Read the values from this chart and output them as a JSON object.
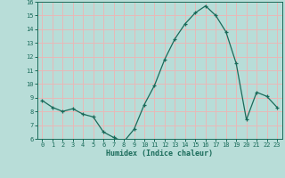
{
  "x": [
    0,
    1,
    2,
    3,
    4,
    5,
    6,
    7,
    8,
    9,
    10,
    11,
    12,
    13,
    14,
    15,
    16,
    17,
    18,
    19,
    20,
    21,
    22,
    23
  ],
  "y": [
    8.8,
    8.3,
    8.0,
    8.2,
    7.8,
    7.6,
    6.5,
    6.1,
    5.8,
    6.7,
    8.5,
    9.9,
    11.8,
    13.3,
    14.4,
    15.2,
    15.7,
    15.0,
    13.8,
    11.5,
    7.4,
    9.4,
    9.1,
    8.3
  ],
  "line_color": "#1a6b5a",
  "marker": "+",
  "marker_size": 3,
  "bg_color": "#b8ddd8",
  "grid_color": "#e8b8b8",
  "axis_label_color": "#1a6b5a",
  "tick_color": "#1a6b5a",
  "xlabel": "Humidex (Indice chaleur)",
  "ylim": [
    6,
    16
  ],
  "xlim": [
    -0.5,
    23.5
  ],
  "yticks": [
    6,
    7,
    8,
    9,
    10,
    11,
    12,
    13,
    14,
    15,
    16
  ],
  "xticks": [
    0,
    1,
    2,
    3,
    4,
    5,
    6,
    7,
    8,
    9,
    10,
    11,
    12,
    13,
    14,
    15,
    16,
    17,
    18,
    19,
    20,
    21,
    22,
    23
  ]
}
